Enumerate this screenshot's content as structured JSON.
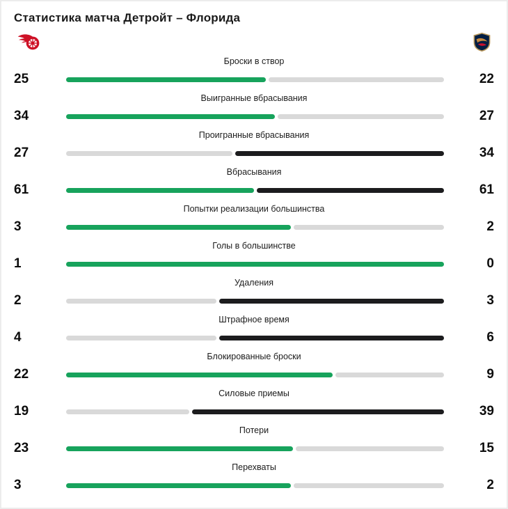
{
  "title": "Статистика матча Детройт – Флорида",
  "teams": {
    "home": {
      "name": "Детройт",
      "logo_icon": "detroit-red-wings-logo"
    },
    "away": {
      "name": "Флорида",
      "logo_icon": "florida-panthers-logo"
    }
  },
  "colors": {
    "home_bar": "#17a35c",
    "away_bar": "#1c1c1e",
    "neutral_bar": "#d9d9d9",
    "detroit_red": "#ce1126",
    "florida_navy": "#041e42",
    "florida_gold": "#b9975b",
    "florida_red": "#c8102e"
  },
  "chart_data": {
    "type": "bar",
    "orientation": "horizontal-paired",
    "title": "Статистика матча Детройт – Флорида",
    "legend_position": "none",
    "grid": false,
    "categories": [
      "Броски в створ",
      "Выигранные вбрасывания",
      "Проигранные вбрасывания",
      "Вбрасывания",
      "Попытки реализации большинства",
      "Голы в большинстве",
      "Удаления",
      "Штрафное время",
      "Блокированные броски",
      "Силовые приемы",
      "Потери",
      "Перехваты"
    ],
    "series": [
      {
        "name": "Детройт",
        "values": [
          25,
          34,
          27,
          61,
          3,
          1,
          2,
          4,
          22,
          19,
          23,
          3
        ]
      },
      {
        "name": "Флорида",
        "values": [
          22,
          27,
          34,
          61,
          2,
          0,
          3,
          6,
          9,
          39,
          15,
          2
        ]
      }
    ]
  }
}
